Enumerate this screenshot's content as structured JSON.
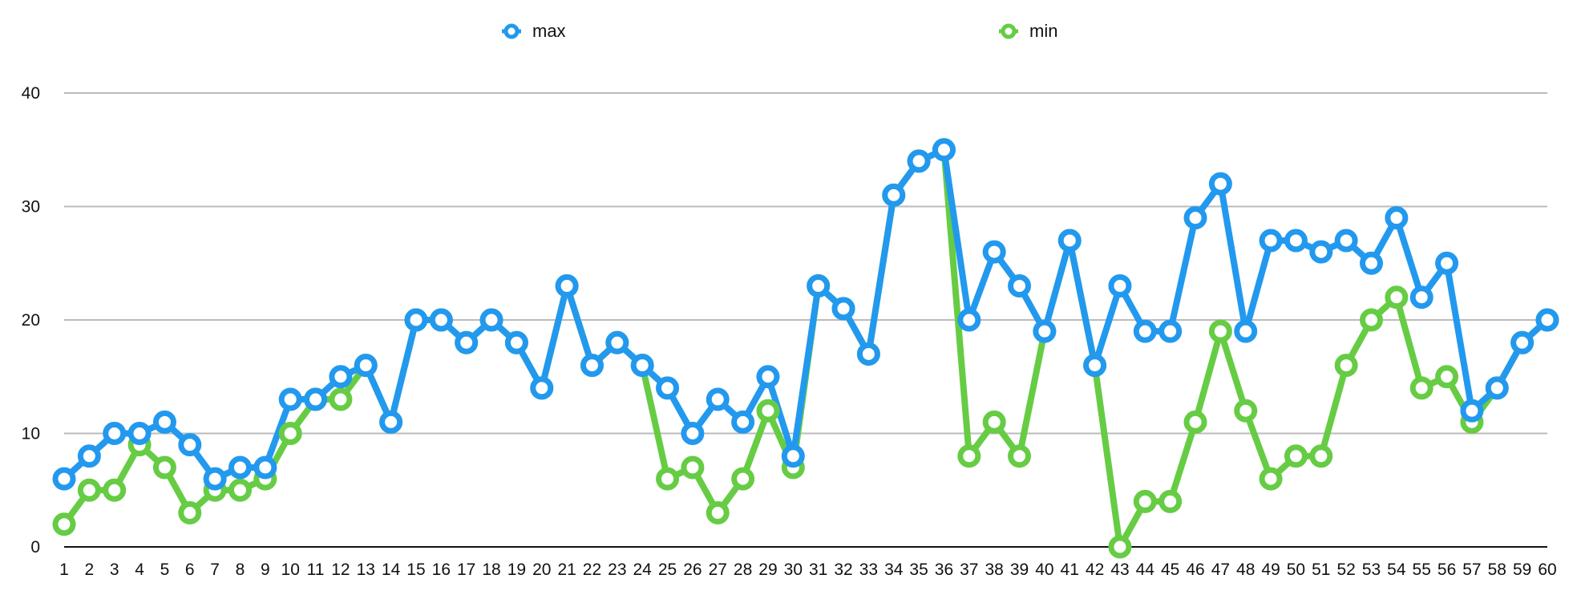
{
  "chart_data": {
    "type": "line",
    "title": "",
    "xlabel": "",
    "ylabel": "",
    "categories": [
      "1",
      "2",
      "3",
      "4",
      "5",
      "6",
      "7",
      "8",
      "9",
      "10",
      "11",
      "12",
      "13",
      "14",
      "15",
      "16",
      "17",
      "18",
      "19",
      "20",
      "21",
      "22",
      "23",
      "24",
      "25",
      "26",
      "27",
      "28",
      "29",
      "30",
      "31",
      "32",
      "33",
      "34",
      "35",
      "36",
      "37",
      "38",
      "39",
      "40",
      "41",
      "42",
      "43",
      "44",
      "45",
      "46",
      "47",
      "48",
      "49",
      "50",
      "51",
      "52",
      "53",
      "54",
      "55",
      "56",
      "57",
      "58",
      "59",
      "60"
    ],
    "ylim": [
      0,
      40
    ],
    "yticks": [
      0,
      10,
      20,
      30,
      40
    ],
    "grid": true,
    "legend_position": "top-center",
    "series": [
      {
        "name": "max",
        "color": "#2299ee",
        "values": [
          6,
          8,
          10,
          10,
          11,
          9,
          6,
          7,
          7,
          13,
          13,
          15,
          16,
          11,
          20,
          20,
          18,
          20,
          18,
          14,
          23,
          16,
          18,
          16,
          14,
          10,
          13,
          11,
          15,
          8,
          23,
          21,
          17,
          31,
          34,
          35,
          20,
          26,
          23,
          19,
          27,
          16,
          23,
          19,
          19,
          29,
          32,
          19,
          27,
          27,
          26,
          27,
          25,
          29,
          22,
          25,
          12,
          14,
          18,
          20
        ]
      },
      {
        "name": "min",
        "color": "#66cc44",
        "values": [
          2,
          5,
          5,
          9,
          7,
          3,
          5,
          5,
          6,
          10,
          13,
          13,
          16,
          11,
          20,
          20,
          18,
          20,
          18,
          14,
          23,
          16,
          18,
          16,
          6,
          7,
          3,
          6,
          12,
          7,
          23,
          21,
          17,
          31,
          34,
          35,
          8,
          11,
          8,
          19,
          27,
          16,
          0,
          4,
          4,
          11,
          19,
          12,
          6,
          8,
          8,
          16,
          20,
          22,
          14,
          15,
          11,
          14,
          18,
          20
        ]
      }
    ]
  }
}
